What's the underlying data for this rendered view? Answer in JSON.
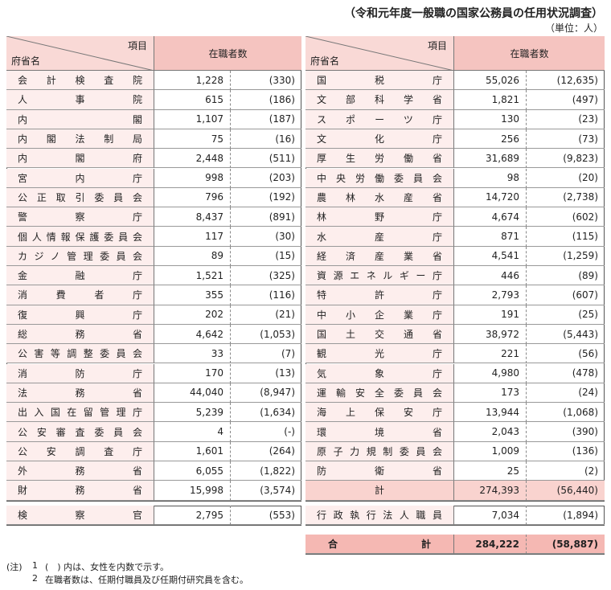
{
  "header": {
    "title": "（令和元年度一般職の国家公務員の任用状況調査）",
    "unit": "（単位：人）"
  },
  "table": {
    "col_item": "項目",
    "col_ministry": "府省名",
    "col_count": "在職者数",
    "left_rows": [
      [
        "会計検査院",
        "1,228",
        "(330)"
      ],
      [
        "人事院",
        "615",
        "(186)"
      ],
      [
        "内閣",
        "1,107",
        "(187)"
      ],
      [
        "内閣法制局",
        "75",
        "(16)"
      ],
      [
        "内閣府",
        "2,448",
        "(511)"
      ],
      [
        "宮内庁",
        "998",
        "(203)"
      ],
      [
        "公正取引委員会",
        "796",
        "(192)"
      ],
      [
        "警察庁",
        "8,437",
        "(891)"
      ],
      [
        "個人情報保護委員会",
        "117",
        "(30)"
      ],
      [
        "カジノ管理委員会",
        "89",
        "(15)"
      ],
      [
        "金融庁",
        "1,521",
        "(325)"
      ],
      [
        "消費者庁",
        "355",
        "(116)"
      ],
      [
        "復興庁",
        "202",
        "(21)"
      ],
      [
        "総務省",
        "4,642",
        "(1,053)"
      ],
      [
        "公害等調整委員会",
        "33",
        "(7)"
      ],
      [
        "消防庁",
        "170",
        "(13)"
      ],
      [
        "法務省",
        "44,040",
        "(8,947)"
      ],
      [
        "出入国在留管理庁",
        "5,239",
        "(1,634)"
      ],
      [
        "公安審査委員会",
        "4",
        "(-)"
      ],
      [
        "公安調査庁",
        "1,601",
        "(264)"
      ],
      [
        "外務省",
        "6,055",
        "(1,822)"
      ],
      [
        "財務省",
        "15,998",
        "(3,574)"
      ]
    ],
    "left_extra": [
      "検察官",
      "2,795",
      "(553)"
    ],
    "right_rows": [
      [
        "国税庁",
        "55,026",
        "(12,635)"
      ],
      [
        "文部科学省",
        "1,821",
        "(497)"
      ],
      [
        "スポーツ庁",
        "130",
        "(23)"
      ],
      [
        "文化庁",
        "256",
        "(73)"
      ],
      [
        "厚生労働省",
        "31,689",
        "(9,823)"
      ],
      [
        "中央労働委員会",
        "98",
        "(20)"
      ],
      [
        "農林水産省",
        "14,720",
        "(2,738)"
      ],
      [
        "林野庁",
        "4,674",
        "(602)"
      ],
      [
        "水産庁",
        "871",
        "(115)"
      ],
      [
        "経済産業省",
        "4,541",
        "(1,259)"
      ],
      [
        "資源エネルギー庁",
        "446",
        "(89)"
      ],
      [
        "特許庁",
        "2,793",
        "(607)"
      ],
      [
        "中小企業庁",
        "191",
        "(25)"
      ],
      [
        "国土交通省",
        "38,972",
        "(5,443)"
      ],
      [
        "観光庁",
        "221",
        "(56)"
      ],
      [
        "気象庁",
        "4,980",
        "(478)"
      ],
      [
        "運輸安全委員会",
        "173",
        "(24)"
      ],
      [
        "海上保安庁",
        "13,944",
        "(1,068)"
      ],
      [
        "環境省",
        "2,043",
        "(390)"
      ],
      [
        "原子力規制委員会",
        "1,009",
        "(136)"
      ],
      [
        "防衛省",
        "25",
        "(2)"
      ]
    ],
    "right_subtotal": [
      "計",
      "274,393",
      "(56,440)"
    ],
    "right_extra": [
      "行政執行法人職員",
      "7,034",
      "(1,894)"
    ],
    "grand_total": [
      "合計",
      "284,222",
      "(58,887)"
    ]
  },
  "notes": {
    "prefix": "(注)",
    "items": [
      [
        "1",
        "(　) 内は、女性を内数で示す。"
      ],
      [
        "2",
        "在職者数は、任期付職員及び任期付研究員を含む。"
      ]
    ]
  }
}
